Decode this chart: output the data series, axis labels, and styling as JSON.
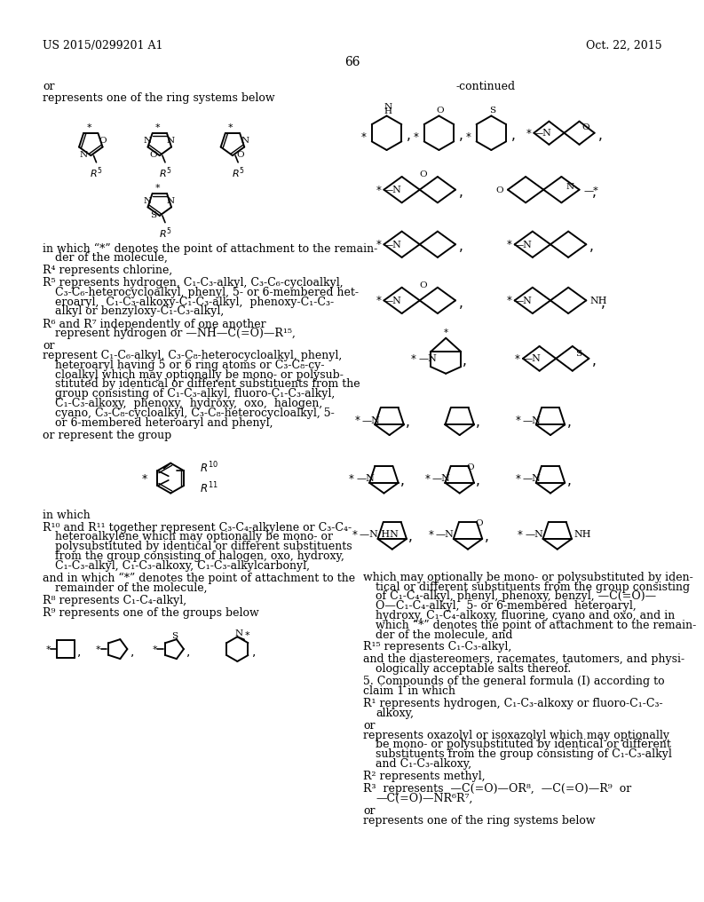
{
  "background_color": "#ffffff",
  "header_left": "US 2015/0299201 A1",
  "header_right": "Oct. 22, 2015",
  "page_number": "66",
  "continued_label": "-continued"
}
